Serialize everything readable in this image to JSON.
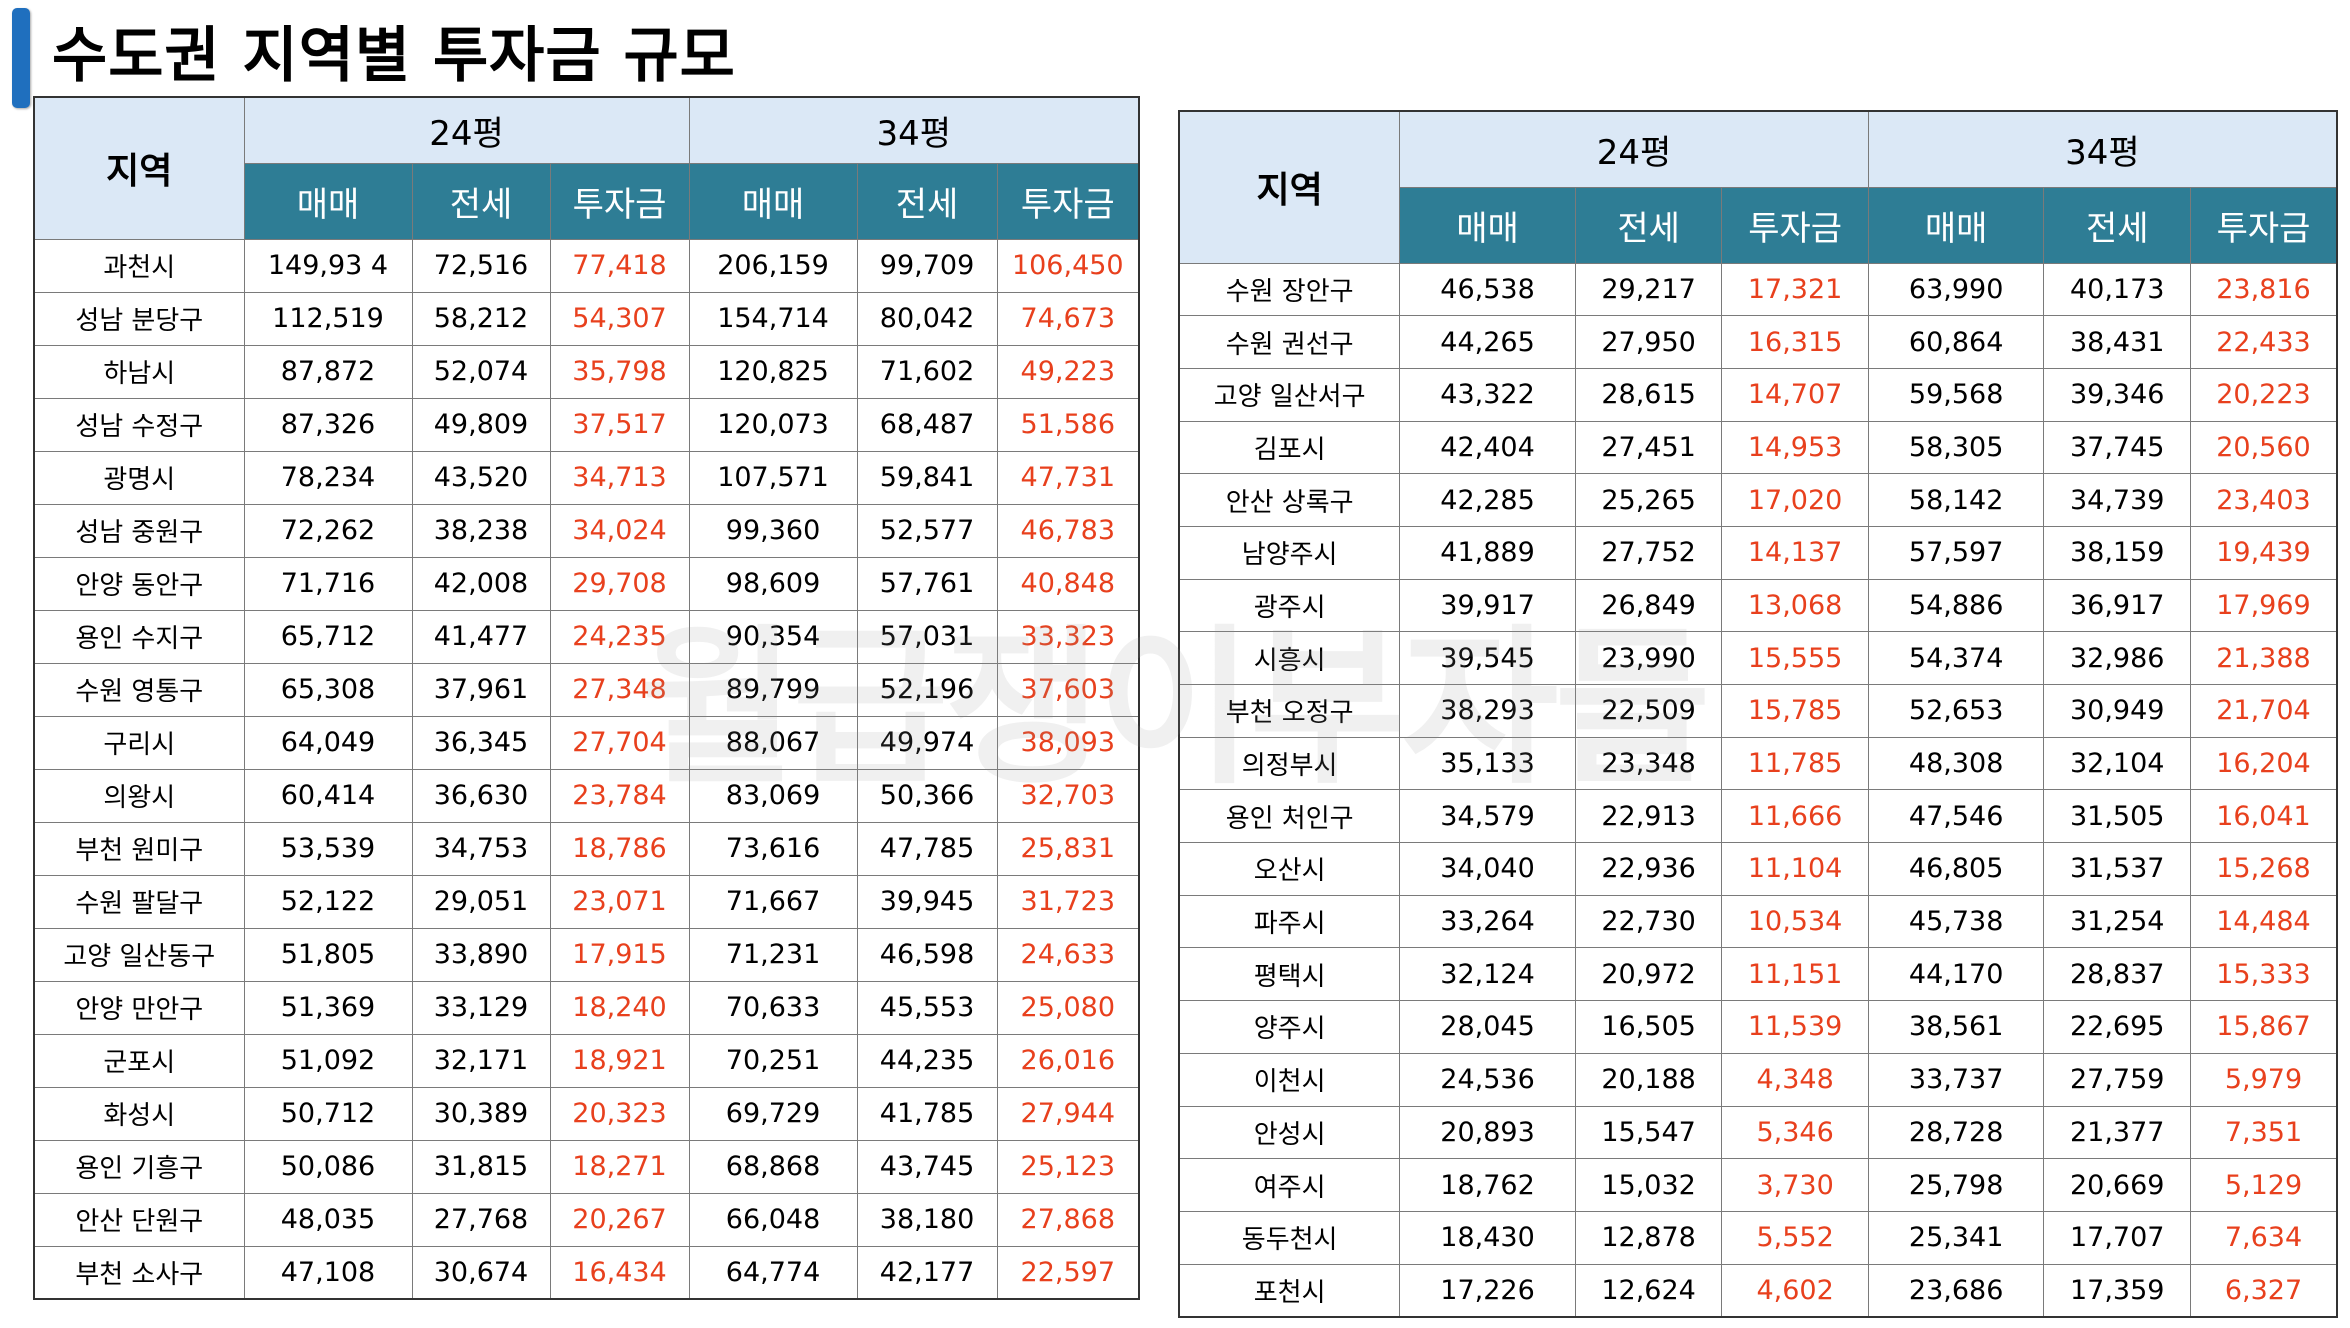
{
  "title": "수도권 지역별 투자금 규모",
  "watermark": "월급쟁이부자들",
  "headers": {
    "region": "지역",
    "size_24": "24평",
    "size_34": "34평",
    "sale": "매매",
    "lease": "전세",
    "investment": "투자금"
  },
  "colors": {
    "header_light": "#dbe8f6",
    "header_dark": "#2e7d95",
    "investment_text": "#e8401d",
    "title_bar": "#1f6fbe"
  },
  "left_table": [
    [
      "과천시",
      "149,93 4",
      "72,516",
      "77,418",
      "206,159",
      "99,709",
      "106,450"
    ],
    [
      "성남 분당구",
      "112,519",
      "58,212",
      "54,307",
      "154,714",
      "80,042",
      "74,673"
    ],
    [
      "하남시",
      "87,872",
      "52,074",
      "35,798",
      "120,825",
      "71,602",
      "49,223"
    ],
    [
      "성남 수정구",
      "87,326",
      "49,809",
      "37,517",
      "120,073",
      "68,487",
      "51,586"
    ],
    [
      "광명시",
      "78,234",
      "43,520",
      "34,713",
      "107,571",
      "59,841",
      "47,731"
    ],
    [
      "성남 중원구",
      "72,262",
      "38,238",
      "34,024",
      "99,360",
      "52,577",
      "46,783"
    ],
    [
      "안양 동안구",
      "71,716",
      "42,008",
      "29,708",
      "98,609",
      "57,761",
      "40,848"
    ],
    [
      "용인 수지구",
      "65,712",
      "41,477",
      "24,235",
      "90,354",
      "57,031",
      "33,323"
    ],
    [
      "수원 영통구",
      "65,308",
      "37,961",
      "27,348",
      "89,799",
      "52,196",
      "37,603"
    ],
    [
      "구리시",
      "64,049",
      "36,345",
      "27,704",
      "88,067",
      "49,974",
      "38,093"
    ],
    [
      "의왕시",
      "60,414",
      "36,630",
      "23,784",
      "83,069",
      "50,366",
      "32,703"
    ],
    [
      "부천 원미구",
      "53,539",
      "34,753",
      "18,786",
      "73,616",
      "47,785",
      "25,831"
    ],
    [
      "수원 팔달구",
      "52,122",
      "29,051",
      "23,071",
      "71,667",
      "39,945",
      "31,723"
    ],
    [
      "고양 일산동구",
      "51,805",
      "33,890",
      "17,915",
      "71,231",
      "46,598",
      "24,633"
    ],
    [
      "안양 만안구",
      "51,369",
      "33,129",
      "18,240",
      "70,633",
      "45,553",
      "25,080"
    ],
    [
      "군포시",
      "51,092",
      "32,171",
      "18,921",
      "70,251",
      "44,235",
      "26,016"
    ],
    [
      "화성시",
      "50,712",
      "30,389",
      "20,323",
      "69,729",
      "41,785",
      "27,944"
    ],
    [
      "용인 기흥구",
      "50,086",
      "31,815",
      "18,271",
      "68,868",
      "43,745",
      "25,123"
    ],
    [
      "안산 단원구",
      "48,035",
      "27,768",
      "20,267",
      "66,048",
      "38,180",
      "27,868"
    ],
    [
      "부천 소사구",
      "47,108",
      "30,674",
      "16,434",
      "64,774",
      "42,177",
      "22,597"
    ]
  ],
  "right_table": [
    [
      "수원 장안구",
      "46,538",
      "29,217",
      "17,321",
      "63,990",
      "40,173",
      "23,816"
    ],
    [
      "수원 권선구",
      "44,265",
      "27,950",
      "16,315",
      "60,864",
      "38,431",
      "22,433"
    ],
    [
      "고양 일산서구",
      "43,322",
      "28,615",
      "14,707",
      "59,568",
      "39,346",
      "20,223"
    ],
    [
      "김포시",
      "42,404",
      "27,451",
      "14,953",
      "58,305",
      "37,745",
      "20,560"
    ],
    [
      "안산 상록구",
      "42,285",
      "25,265",
      "17,020",
      "58,142",
      "34,739",
      "23,403"
    ],
    [
      "남양주시",
      "41,889",
      "27,752",
      "14,137",
      "57,597",
      "38,159",
      "19,439"
    ],
    [
      "광주시",
      "39,917",
      "26,849",
      "13,068",
      "54,886",
      "36,917",
      "17,969"
    ],
    [
      "시흥시",
      "39,545",
      "23,990",
      "15,555",
      "54,374",
      "32,986",
      "21,388"
    ],
    [
      "부천 오정구",
      "38,293",
      "22,509",
      "15,785",
      "52,653",
      "30,949",
      "21,704"
    ],
    [
      "의정부시",
      "35,133",
      "23,348",
      "11,785",
      "48,308",
      "32,104",
      "16,204"
    ],
    [
      "용인 처인구",
      "34,579",
      "22,913",
      "11,666",
      "47,546",
      "31,505",
      "16,041"
    ],
    [
      "오산시",
      "34,040",
      "22,936",
      "11,104",
      "46,805",
      "31,537",
      "15,268"
    ],
    [
      "파주시",
      "33,264",
      "22,730",
      "10,534",
      "45,738",
      "31,254",
      "14,484"
    ],
    [
      "평택시",
      "32,124",
      "20,972",
      "11,151",
      "44,170",
      "28,837",
      "15,333"
    ],
    [
      "양주시",
      "28,045",
      "16,505",
      "11,539",
      "38,561",
      "22,695",
      "15,867"
    ],
    [
      "이천시",
      "24,536",
      "20,188",
      "4,348",
      "33,737",
      "27,759",
      "5,979"
    ],
    [
      "안성시",
      "20,893",
      "15,547",
      "5,346",
      "28,728",
      "21,377",
      "7,351"
    ],
    [
      "여주시",
      "18,762",
      "15,032",
      "3,730",
      "25,798",
      "20,669",
      "5,129"
    ],
    [
      "동두천시",
      "18,430",
      "12,878",
      "5,552",
      "25,341",
      "17,707",
      "7,634"
    ],
    [
      "포천시",
      "17,226",
      "12,624",
      "4,602",
      "23,686",
      "17,359",
      "6,327"
    ]
  ]
}
